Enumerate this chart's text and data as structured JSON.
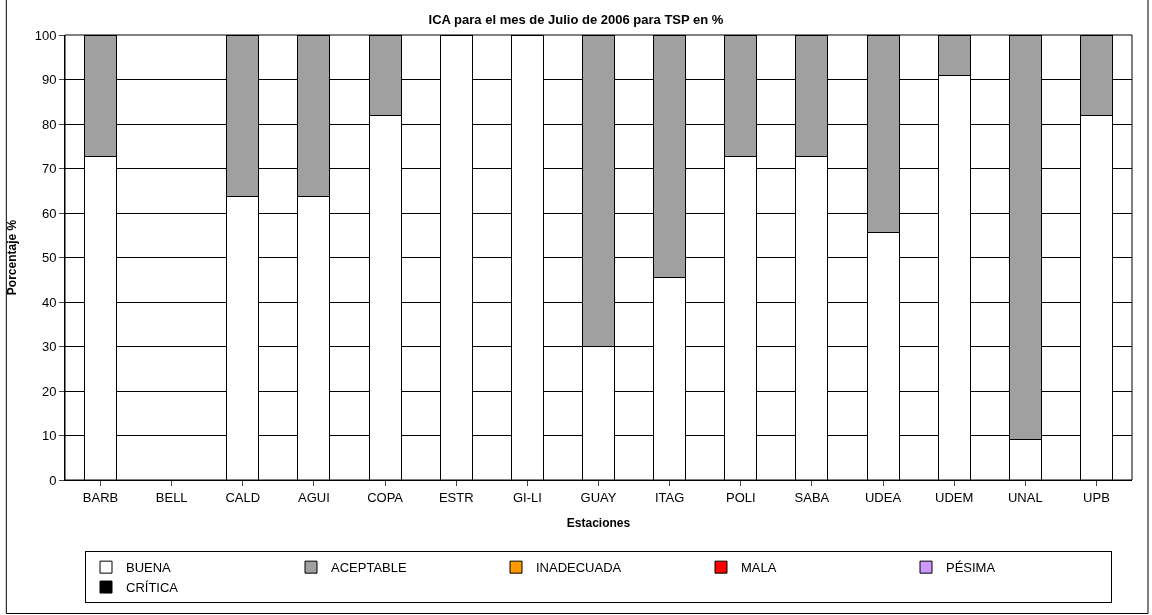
{
  "chart_data": {
    "type": "bar",
    "stacked": true,
    "title": "ICA para el mes de Julio de 2006 para TSP en %",
    "xlabel": "Estaciones",
    "ylabel": "Porcentaje %",
    "categories": [
      "BARB",
      "BELL",
      "CALD",
      "AGUI",
      "COPA",
      "ESTR",
      "GI-LI",
      "GUAY",
      "ITAG",
      "POLI",
      "SABA",
      "UDEA",
      "UDEM",
      "UNAL",
      "UPB"
    ],
    "series": [
      {
        "name": "BUENA",
        "color": "#ffffff",
        "values": [
          72.7,
          null,
          63.6,
          63.6,
          81.8,
          100,
          100,
          30,
          45.5,
          72.7,
          72.7,
          55.6,
          90.9,
          9.1,
          81.8
        ]
      },
      {
        "name": "ACEPTABLE",
        "color": "#a0a0a0",
        "values": [
          27.3,
          null,
          36.4,
          36.4,
          18.2,
          0,
          0,
          70,
          54.5,
          27.3,
          27.3,
          44.4,
          9.1,
          90.9,
          18.2
        ]
      },
      {
        "name": "INADECUADA",
        "color": "#ff9900",
        "values": [
          0,
          null,
          0,
          0,
          0,
          0,
          0,
          0,
          0,
          0,
          0,
          0,
          0,
          0,
          0
        ]
      },
      {
        "name": "MALA",
        "color": "#ff0000",
        "values": [
          0,
          null,
          0,
          0,
          0,
          0,
          0,
          0,
          0,
          0,
          0,
          0,
          0,
          0,
          0
        ]
      },
      {
        "name": "PÉSIMA",
        "color": "#cc99ff",
        "values": [
          0,
          null,
          0,
          0,
          0,
          0,
          0,
          0,
          0,
          0,
          0,
          0,
          0,
          0,
          0
        ]
      },
      {
        "name": "CRÍTICA",
        "color": "#000000",
        "values": [
          0,
          null,
          0,
          0,
          0,
          0,
          0,
          0,
          0,
          0,
          0,
          0,
          0,
          0,
          0
        ]
      }
    ],
    "ylim": [
      0,
      100
    ],
    "yticks": [
      0,
      10,
      20,
      30,
      40,
      50,
      60,
      70,
      80,
      90,
      100
    ],
    "grid": "y",
    "legend": "bottom"
  }
}
